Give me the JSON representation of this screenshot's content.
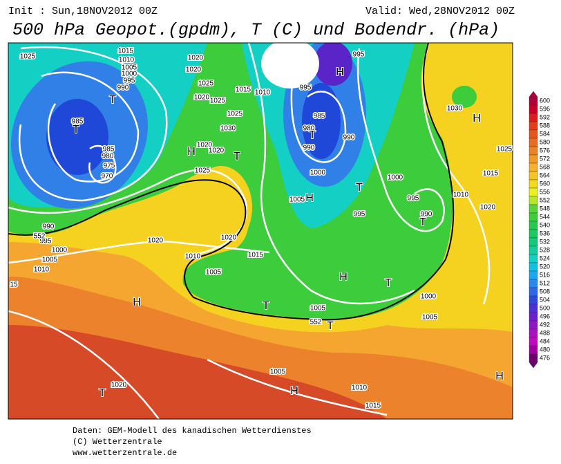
{
  "header": {
    "init": "Init : Sun,18NOV2012 00Z",
    "valid": "Valid: Wed,28NOV2012 00Z",
    "title": "500 hPa Geopot.(gpdm), T (C) und Bodendr. (hPa)"
  },
  "colorbar": {
    "labels": [
      600,
      596,
      592,
      588,
      584,
      580,
      576,
      572,
      568,
      564,
      560,
      556,
      552,
      548,
      544,
      540,
      536,
      532,
      528,
      524,
      520,
      516,
      512,
      508,
      504,
      500,
      496,
      492,
      488,
      484,
      480,
      476
    ]
  },
  "map": {
    "labels": [
      "1025",
      "1015",
      "1010",
      "1005",
      "1000",
      "995",
      "990",
      "T",
      "985",
      "T",
      "985",
      "980",
      "975",
      "970",
      "H",
      "1020",
      "1020",
      "1025",
      "1020",
      "1025",
      "1025",
      "1030",
      "1020",
      "1020",
      "T",
      "1025",
      "1015",
      "1010",
      "995",
      "H",
      "995",
      "985",
      "980",
      "T",
      "990",
      "990",
      "1000",
      "1000",
      "T",
      "H",
      "1005",
      "995",
      "995",
      "990",
      "T",
      "1030",
      "H",
      "1025",
      "1015",
      "1010",
      "1020",
      "990",
      "995",
      "1000",
      "1005",
      "1010",
      "15",
      "1020",
      "1020",
      "1015",
      "1010",
      "1005",
      "H",
      "T",
      "1000",
      "1005",
      "1005",
      "T",
      "552",
      "T",
      "H",
      "1020",
      "T",
      "1005",
      "1010",
      "H",
      "1015",
      "H",
      "552"
    ]
  },
  "footer": {
    "lines": [
      "Daten: GEM-Modell des kanadischen Wetterdienstes",
      "(C) Wetterzentrale",
      "www.wetterzentrale.de"
    ]
  }
}
